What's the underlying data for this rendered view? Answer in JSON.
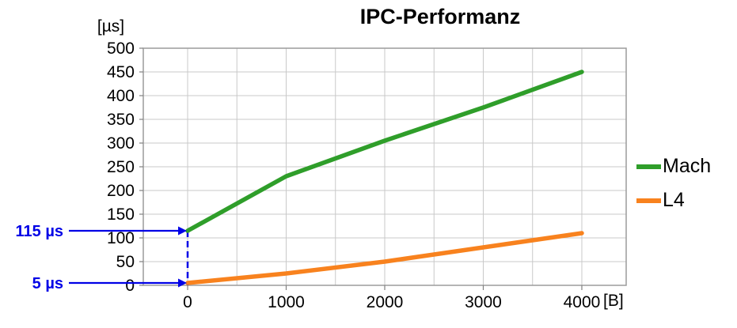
{
  "chart_data": {
    "type": "line",
    "title": "IPC-Performanz",
    "ylabel": "[µs]",
    "xlabel": "[B]",
    "x": [
      0,
      1000,
      2000,
      3000,
      4000
    ],
    "series": [
      {
        "name": "Mach",
        "color": "#2f9e2a",
        "values": [
          115,
          230,
          305,
          375,
          450
        ]
      },
      {
        "name": "L4",
        "color": "#f8821e",
        "values": [
          5,
          25,
          50,
          80,
          110
        ]
      }
    ],
    "xlim": [
      -450,
      4450
    ],
    "ylim": [
      0,
      500
    ],
    "x_ticks": [
      0,
      1000,
      2000,
      3000,
      4000
    ],
    "y_tick_step": 50,
    "x_grid_step": 500,
    "grid": true,
    "grid_color": "#c9c9c9",
    "border_color": "#9c9c9c",
    "tick_color": "#808080",
    "legend_position": "right",
    "annotation_color": "#0000e6",
    "annotations": [
      {
        "label": "115 µs",
        "x": 0,
        "y": 115
      },
      {
        "label": "5 µs",
        "x": 0,
        "y": 5
      }
    ],
    "drop_line": {
      "x": 0,
      "from": 115,
      "to": 0
    }
  }
}
